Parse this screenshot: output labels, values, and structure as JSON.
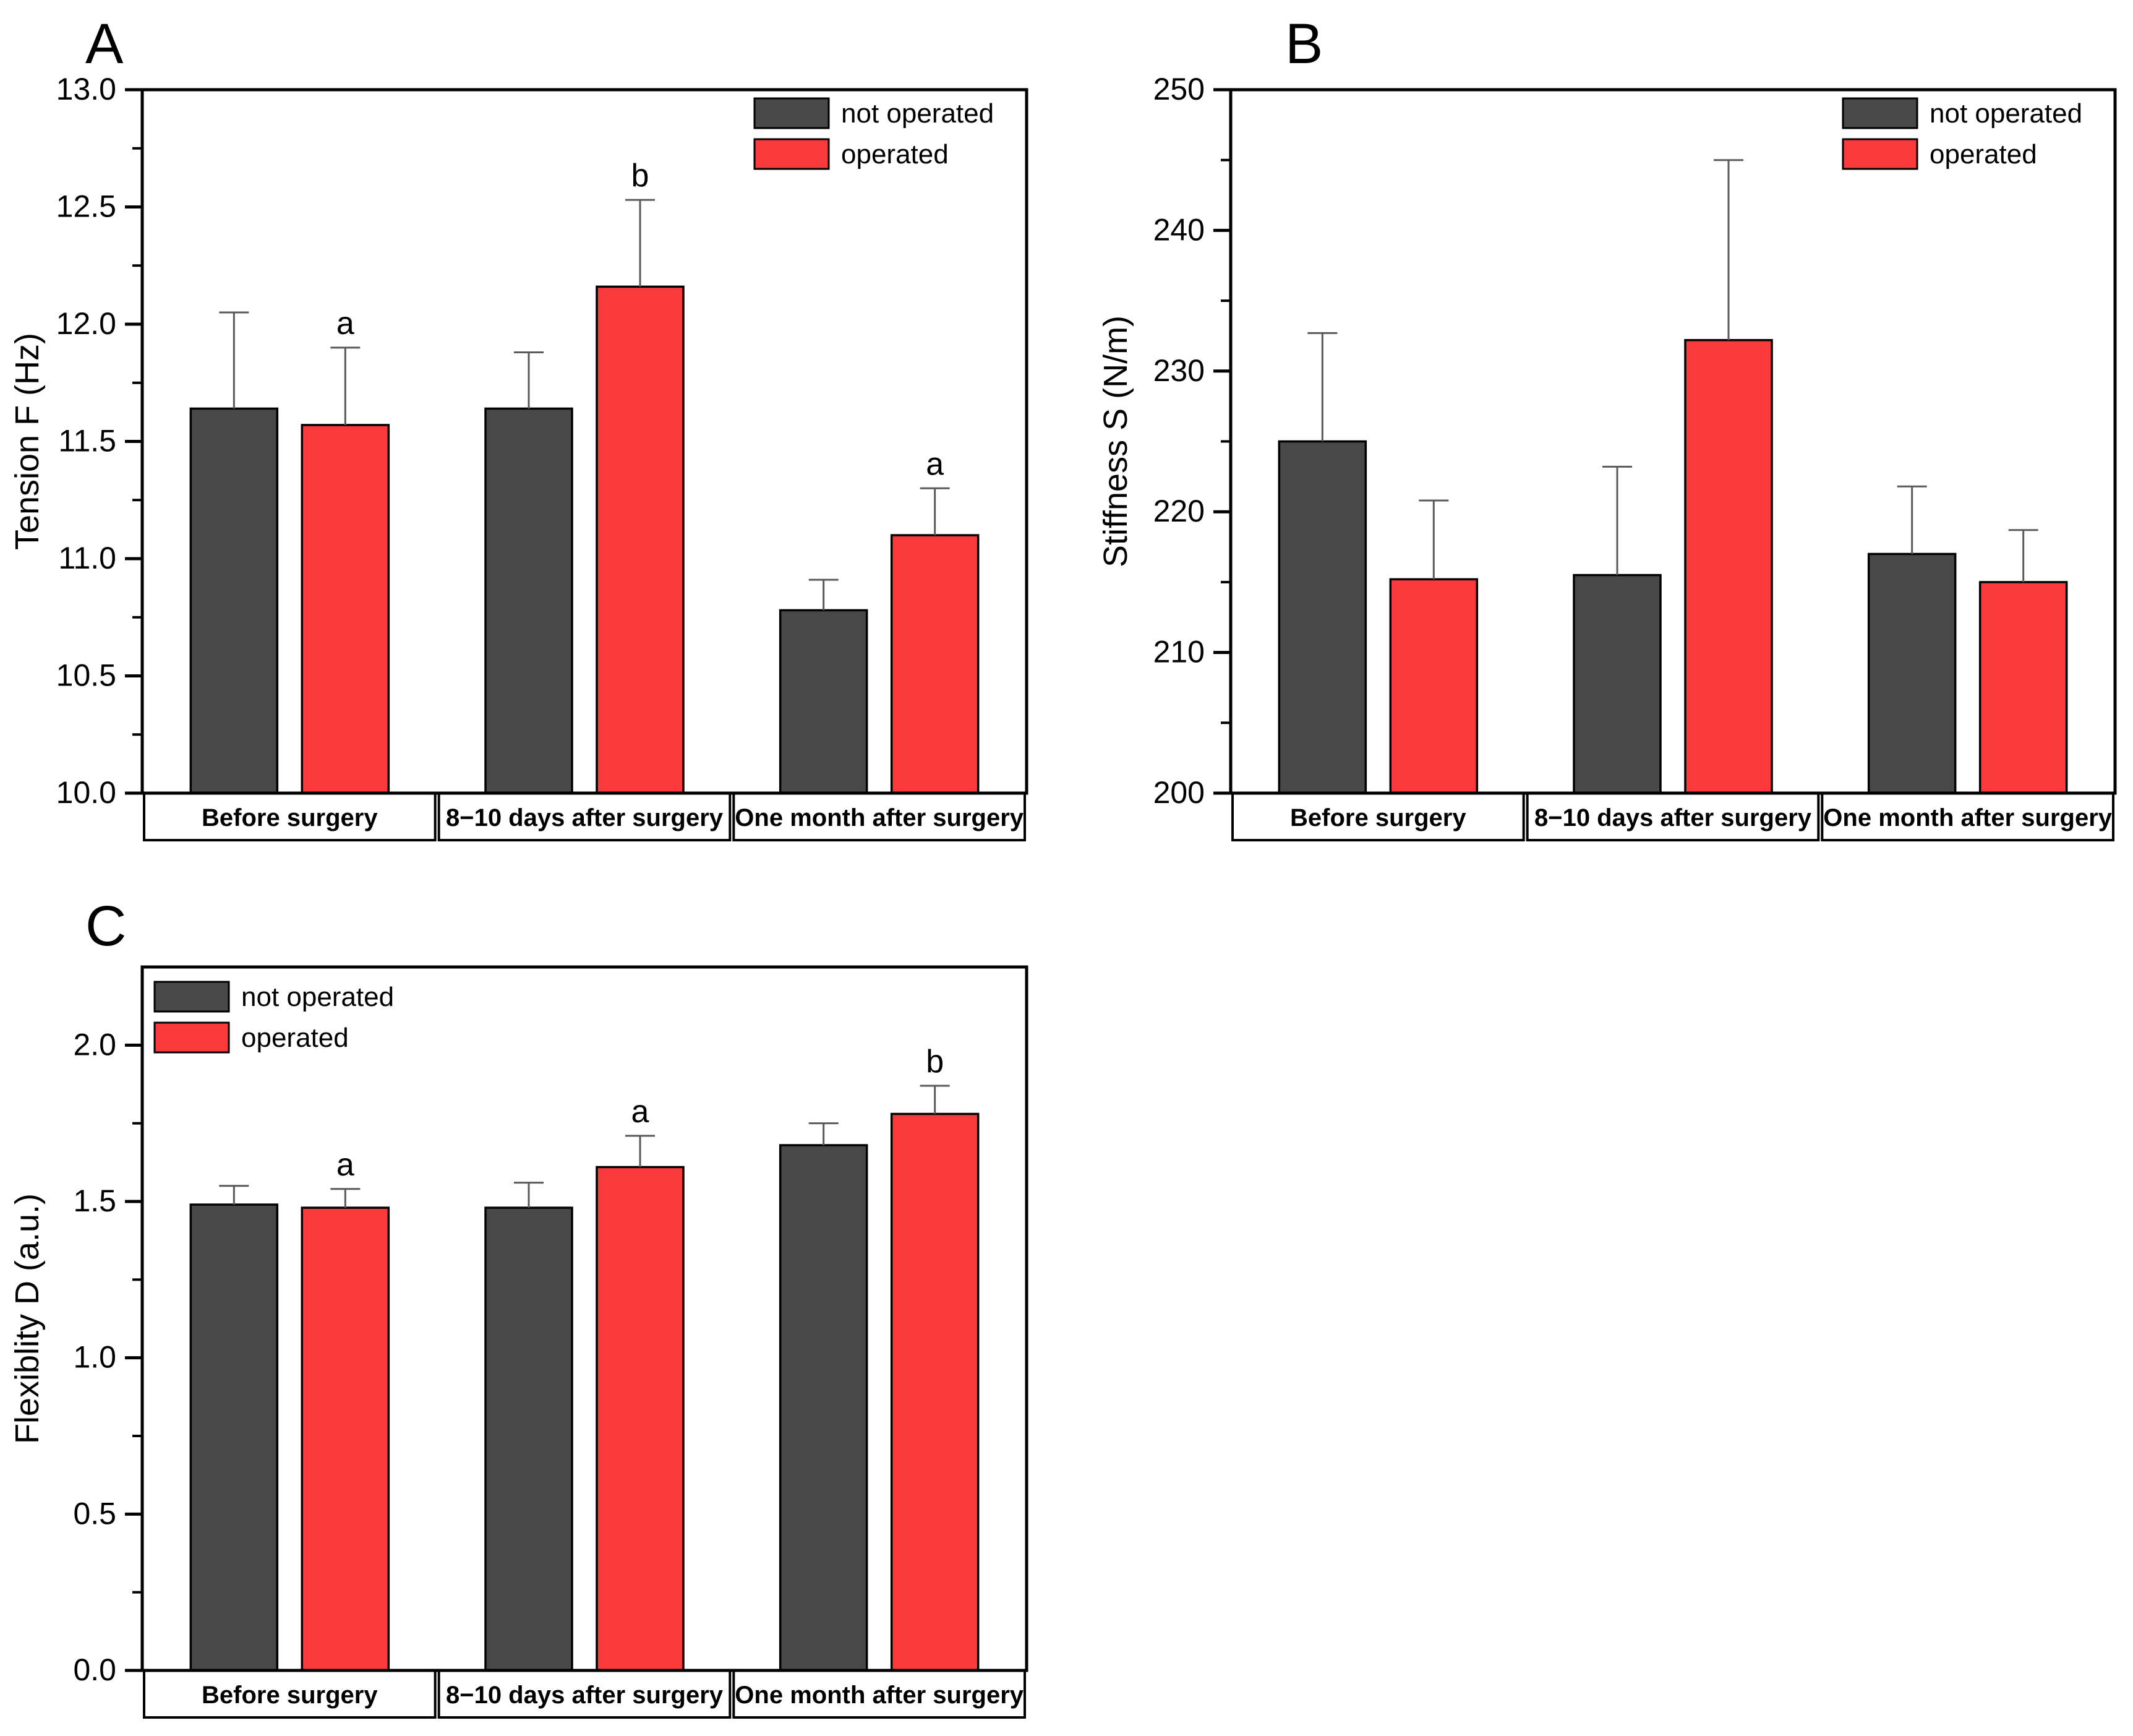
{
  "figure": {
    "background": "#ffffff",
    "description_labels": {
      "panel_a": "A",
      "panel_b": "B",
      "panel_c": "C"
    }
  },
  "colors": {
    "not_operated": "#484848",
    "operated": "#fb3b3b",
    "bar_outline": "#000000",
    "error_bar": "#5a5a5a",
    "frame": "#000000",
    "text": "#000000",
    "strip_fill": "#ffffff"
  },
  "legend": {
    "items": [
      {
        "label": "not operated",
        "color_key": "not_operated"
      },
      {
        "label": "operated",
        "color_key": "operated"
      }
    ]
  },
  "chart_data": [
    {
      "id": "A",
      "panel_label": "A",
      "type": "bar",
      "ylabel": "Tension F (Hz)",
      "ylim": [
        10.0,
        13.0
      ],
      "yticks": [
        10.0,
        10.5,
        11.0,
        11.5,
        12.0,
        12.5,
        13.0
      ],
      "tick_decimals": 1,
      "minor_tick_step": 0.25,
      "grid": false,
      "legend_position": "top-right",
      "categories": [
        "Before surgery",
        "8−10 days after surgery",
        "One month after surgery"
      ],
      "series": [
        {
          "name": "not operated",
          "color_key": "not_operated",
          "values": [
            11.64,
            11.64,
            10.78
          ],
          "errors_plus": [
            0.41,
            0.24,
            0.13
          ]
        },
        {
          "name": "operated",
          "color_key": "operated",
          "values": [
            11.57,
            12.16,
            11.1
          ],
          "errors_plus": [
            0.33,
            0.37,
            0.2
          ]
        }
      ],
      "annotations": [
        {
          "group": 0,
          "series": 1,
          "text": "a"
        },
        {
          "group": 1,
          "series": 1,
          "text": "b"
        },
        {
          "group": 2,
          "series": 1,
          "text": "a"
        }
      ]
    },
    {
      "id": "B",
      "panel_label": "B",
      "type": "bar",
      "ylabel": "Stiffness S (N/m)",
      "ylim": [
        200,
        250
      ],
      "yticks": [
        200,
        210,
        220,
        230,
        240,
        250
      ],
      "tick_decimals": 0,
      "minor_tick_step": 5,
      "grid": false,
      "legend_position": "top-right",
      "categories": [
        "Before surgery",
        "8−10 days after surgery",
        "One month after surgery"
      ],
      "series": [
        {
          "name": "not operated",
          "color_key": "not_operated",
          "values": [
            225.0,
            215.5,
            217.0
          ],
          "errors_plus": [
            7.7,
            7.7,
            4.8
          ]
        },
        {
          "name": "operated",
          "color_key": "operated",
          "values": [
            215.2,
            232.2,
            215.0
          ],
          "errors_plus": [
            5.6,
            12.8,
            3.7
          ]
        }
      ],
      "annotations": []
    },
    {
      "id": "C",
      "panel_label": "C",
      "type": "bar",
      "ylabel": "Flexiblity D (a.u.)",
      "ylim": [
        0.0,
        2.25
      ],
      "yticks": [
        0.0,
        0.5,
        1.0,
        1.5,
        2.0
      ],
      "tick_decimals": 1,
      "minor_tick_step": 0.25,
      "grid": false,
      "legend_position": "top-left",
      "categories": [
        "Before surgery",
        "8−10 days after surgery",
        "One month after surgery"
      ],
      "series": [
        {
          "name": "not operated",
          "color_key": "not_operated",
          "values": [
            1.49,
            1.48,
            1.68
          ],
          "errors_plus": [
            0.06,
            0.08,
            0.07
          ]
        },
        {
          "name": "operated",
          "color_key": "operated",
          "values": [
            1.48,
            1.61,
            1.78
          ],
          "errors_plus": [
            0.06,
            0.1,
            0.09
          ]
        }
      ],
      "annotations": [
        {
          "group": 0,
          "series": 1,
          "text": "a"
        },
        {
          "group": 1,
          "series": 1,
          "text": "a"
        },
        {
          "group": 2,
          "series": 1,
          "text": "b"
        }
      ]
    }
  ]
}
